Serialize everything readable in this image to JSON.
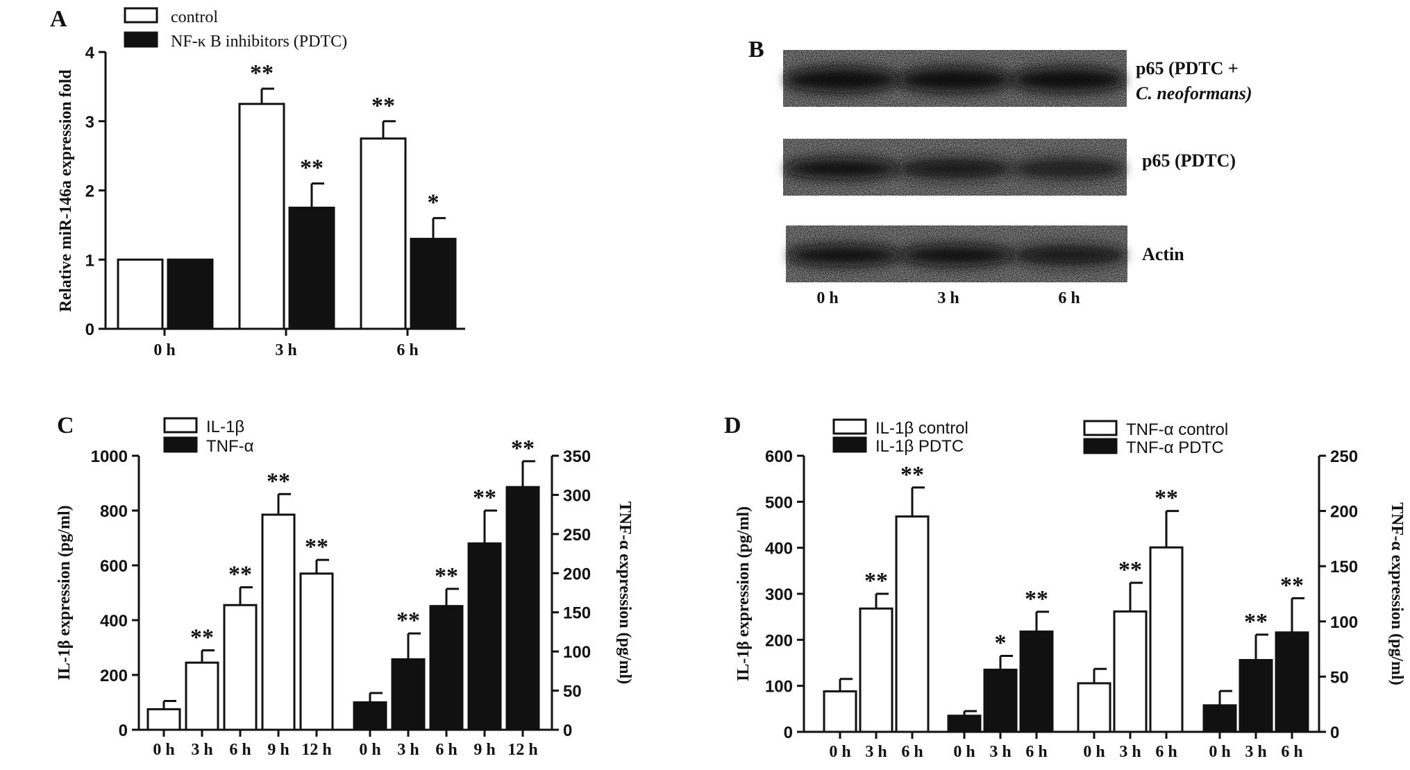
{
  "panels": {
    "a": "A",
    "b": "B",
    "c": "C",
    "d": "D"
  },
  "panel_b": {
    "lanes": [
      "0 h",
      "3 h",
      "6 h"
    ],
    "blots": [
      {
        "label_line1": "p65 (PDTC +",
        "label_line2": "C. neoformans)"
      },
      {
        "label_line1": "p65 (PDTC)",
        "label_line2": ""
      },
      {
        "label_line1": "Actin",
        "label_line2": ""
      }
    ]
  },
  "chart_data": [
    {
      "id": "A",
      "type": "bar",
      "categories": [
        "0 h",
        "3 h",
        "6 h"
      ],
      "ylabel": "Relative miR-146a expression fold",
      "ylim": [
        0,
        4
      ],
      "yticks": [
        "0",
        "1",
        "2",
        "3",
        "4"
      ],
      "series": [
        {
          "name": "control",
          "fill": "#ffffff",
          "values": [
            1.0,
            3.25,
            2.75
          ],
          "errors": [
            0,
            0.22,
            0.25
          ],
          "stars": [
            "",
            "**",
            "**"
          ]
        },
        {
          "name": "NF-κ B inhibitors (PDTC)",
          "fill": "#111111",
          "values": [
            1.0,
            1.75,
            1.3
          ],
          "errors": [
            0,
            0.35,
            0.3
          ],
          "stars": [
            "",
            "**",
            "*"
          ]
        }
      ]
    },
    {
      "id": "C",
      "type": "bar",
      "ylabel_left": "IL-1β   expression (pg/ml)",
      "ylabel_right": "TNF-α   expression (pg/ml)",
      "ylim_left": [
        0,
        1000
      ],
      "yticks_left": [
        "0",
        "200",
        "400",
        "600",
        "800",
        "1000"
      ],
      "ylim_right": [
        0,
        350
      ],
      "yticks_right": [
        "0",
        "50",
        "100",
        "150",
        "200",
        "250",
        "300",
        "350"
      ],
      "legend": [
        {
          "label": "IL-1β",
          "fill": "#ffffff"
        },
        {
          "label": "TNF-α",
          "fill": "#111111"
        }
      ],
      "groups": [
        {
          "name": "IL-1β",
          "axis": "left",
          "fill": "#ffffff",
          "categories": [
            "0 h",
            "3 h",
            "6 h",
            "9 h",
            "12 h"
          ],
          "values": [
            75,
            245,
            455,
            785,
            570
          ],
          "errors": [
            30,
            45,
            65,
            75,
            50
          ],
          "stars": [
            "",
            "**",
            "**",
            "**",
            "**"
          ]
        },
        {
          "name": "TNF-α",
          "axis": "right",
          "fill": "#111111",
          "categories": [
            "0 h",
            "3 h",
            "6 h",
            "9 h",
            "12 h"
          ],
          "values": [
            35,
            90,
            158,
            238,
            310
          ],
          "errors": [
            12,
            33,
            22,
            42,
            33
          ],
          "stars": [
            "",
            "**",
            "**",
            "**",
            "**"
          ]
        }
      ]
    },
    {
      "id": "D",
      "type": "bar",
      "ylabel_left": "IL-1β   expression (pg/ml)",
      "ylabel_right": "TNF-α   expression (pg/ml)",
      "ylim_left": [
        0,
        600
      ],
      "yticks_left": [
        "0",
        "100",
        "200",
        "300",
        "400",
        "500",
        "600"
      ],
      "ylim_right": [
        0,
        250
      ],
      "yticks_right": [
        "0",
        "50",
        "100",
        "150",
        "200",
        "250"
      ],
      "legend": [
        {
          "label": "IL-1β  control",
          "fill": "#ffffff"
        },
        {
          "label": "IL-1β  PDTC",
          "fill": "#111111"
        },
        {
          "label": "TNF-α  control",
          "fill": "#ffffff"
        },
        {
          "label": "TNF-α  PDTC",
          "fill": "#111111"
        }
      ],
      "groups": [
        {
          "name": "IL-1β  control",
          "axis": "left",
          "fill": "#ffffff",
          "categories": [
            "0 h",
            "3 h",
            "6 h"
          ],
          "values": [
            88,
            268,
            468
          ],
          "errors": [
            27,
            32,
            63
          ],
          "stars": [
            "",
            "**",
            "**"
          ]
        },
        {
          "name": "IL-1β  PDTC",
          "axis": "left",
          "fill": "#111111",
          "categories": [
            "0 h",
            "3 h",
            "6 h"
          ],
          "values": [
            35,
            135,
            218
          ],
          "errors": [
            10,
            30,
            43
          ],
          "stars": [
            "",
            "*",
            "**"
          ]
        },
        {
          "name": "TNF-α  control",
          "axis": "right",
          "fill": "#ffffff",
          "categories": [
            "0 h",
            "3 h",
            "6 h"
          ],
          "values": [
            44,
            109,
            167
          ],
          "errors": [
            13,
            26,
            33
          ],
          "stars": [
            "",
            "**",
            "**"
          ]
        },
        {
          "name": "TNF-α  PDTC",
          "axis": "right",
          "fill": "#111111",
          "categories": [
            "0 h",
            "3 h",
            "6 h"
          ],
          "values": [
            24,
            65,
            90
          ],
          "errors": [
            13,
            23,
            31
          ],
          "stars": [
            "",
            "**",
            "**"
          ]
        }
      ]
    }
  ]
}
